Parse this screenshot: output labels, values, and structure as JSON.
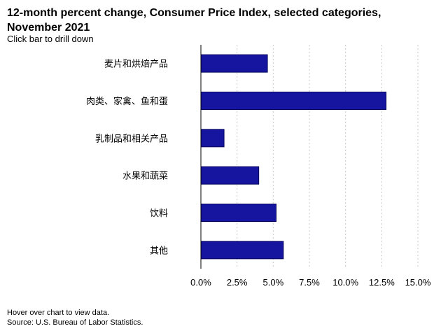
{
  "header": {
    "title": "12-month percent change, Consumer Price Index, selected categories, November 2021",
    "subtitle": "Click bar to drill down"
  },
  "footer": {
    "hover_note": "Hover over chart to view data.",
    "source": "Source: U.S. Bureau of Labor Statistics."
  },
  "colors": {
    "bar_fill": "#1515a0",
    "bar_stroke": "#05055a",
    "gridline": "#c8c8c8",
    "axis": "#000000"
  },
  "chart_data": {
    "type": "bar",
    "orientation": "horizontal",
    "title": "12-month percent change, Consumer Price Index, selected categories, November 2021",
    "categories": [
      "麦片和烘焙产品",
      "肉类、家禽、鱼和蛋",
      "乳制品和相关产品",
      "水果和蔬菜",
      "饮料",
      "其他"
    ],
    "values": [
      4.6,
      12.8,
      1.6,
      4.0,
      5.2,
      5.7
    ],
    "xlim": [
      0,
      15
    ],
    "x_ticks": [
      0,
      2.5,
      5,
      7.5,
      10,
      12.5,
      15
    ],
    "x_tick_labels": [
      "0.0%",
      "2.5%",
      "5.0%",
      "7.5%",
      "10.0%",
      "12.5%",
      "15.0%"
    ],
    "grid": "vertical-dashed",
    "legend": "none"
  }
}
